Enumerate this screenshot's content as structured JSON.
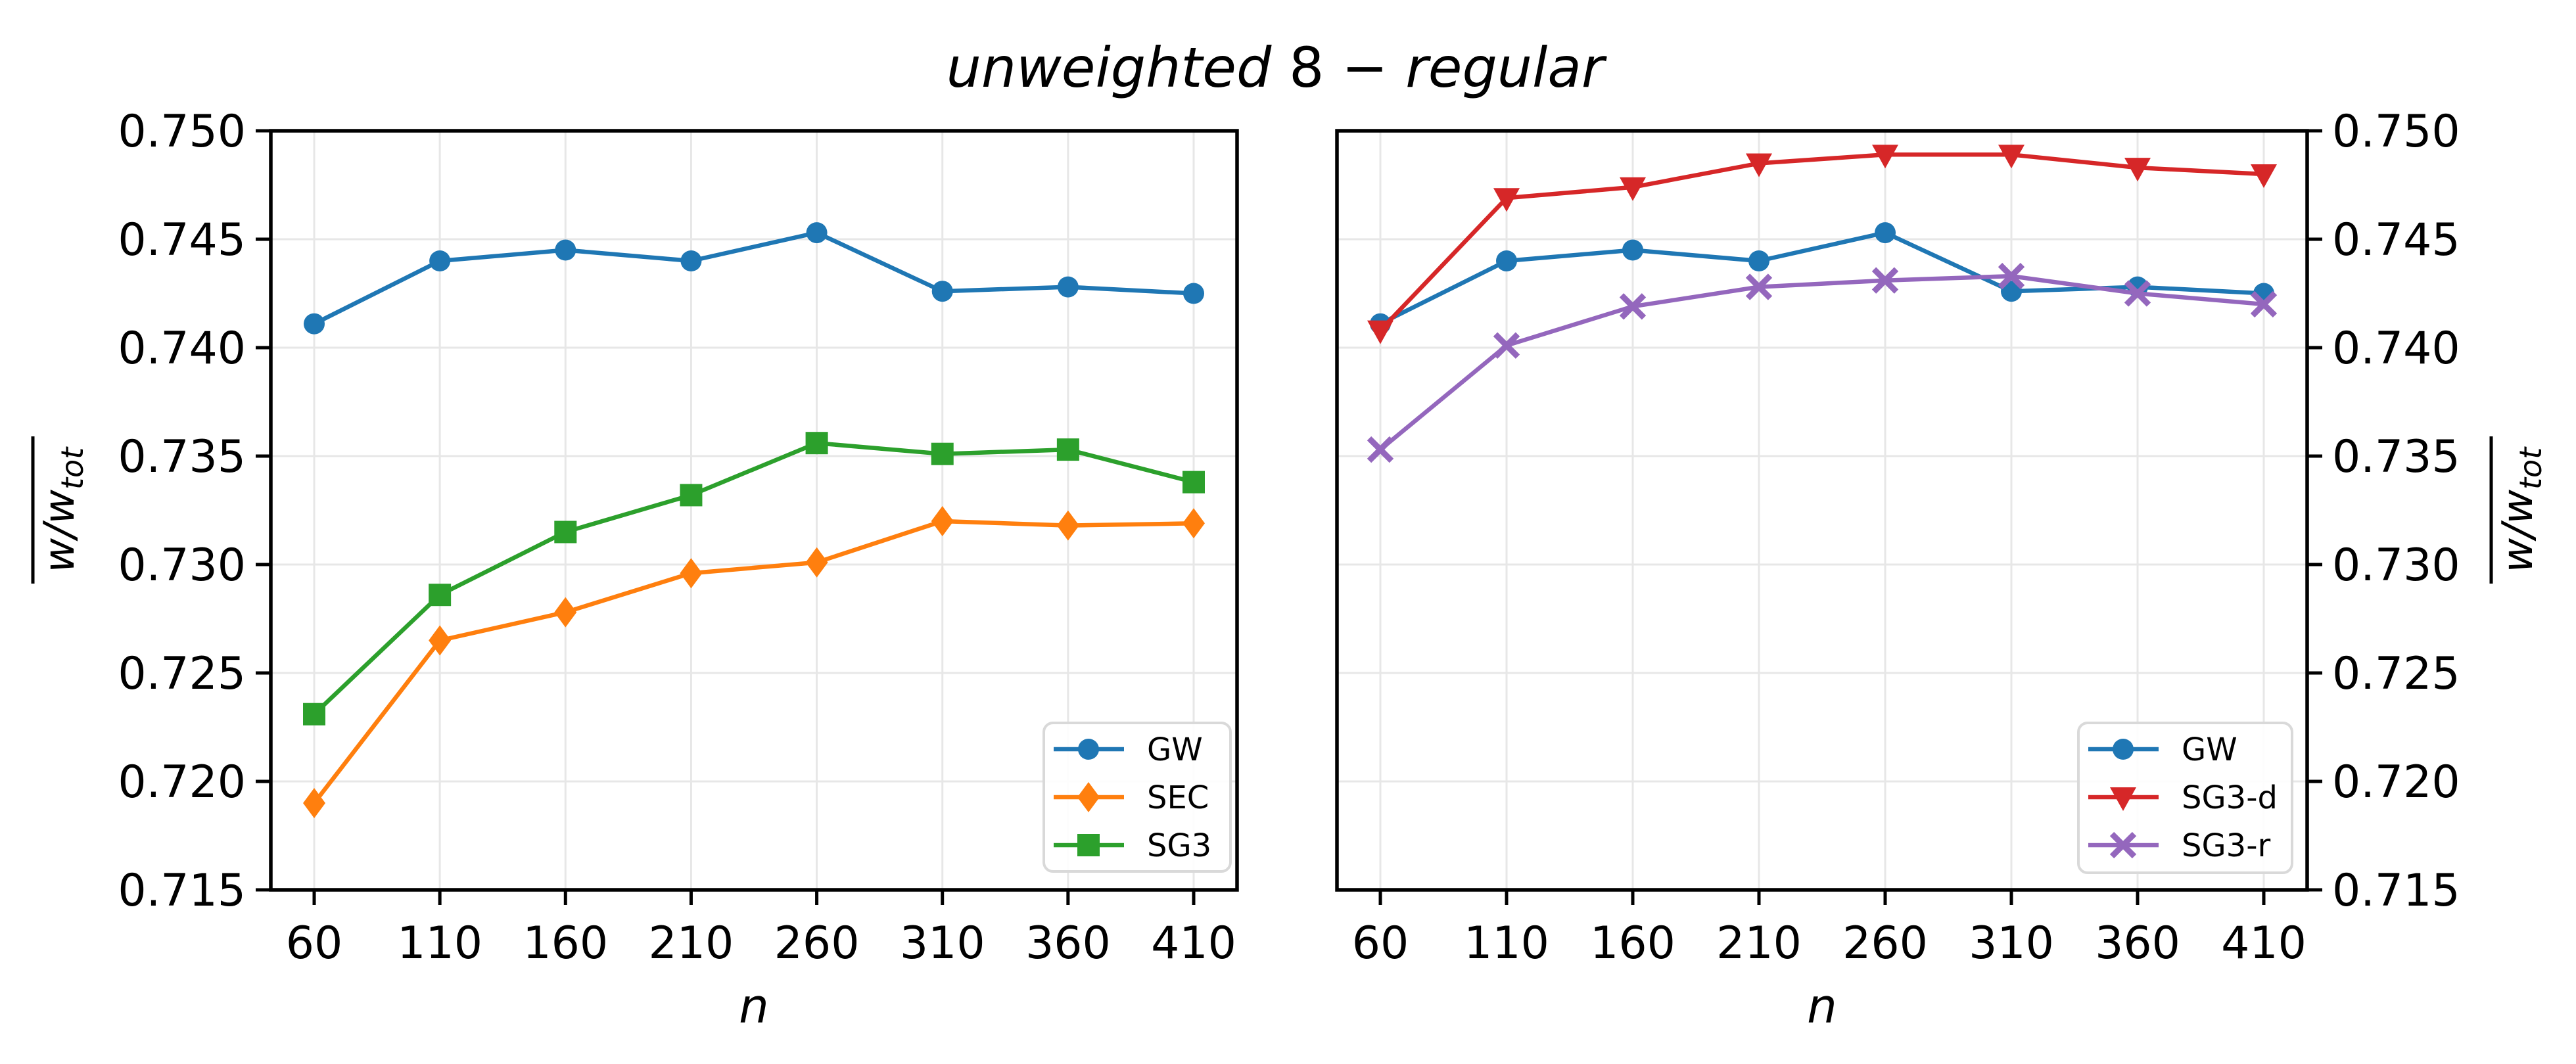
{
  "figure": {
    "title": "unweighted 8 − regular",
    "title_parts": [
      {
        "text": "unweighted",
        "italic": true
      },
      {
        "text": " 8 − ",
        "italic": false
      },
      {
        "text": "regular",
        "italic": true
      }
    ],
    "background": "#ffffff"
  },
  "chart_data": [
    {
      "type": "line",
      "panel": "left",
      "x": [
        60,
        110,
        160,
        210,
        260,
        310,
        360,
        410
      ],
      "xtick_labels": [
        "60",
        "110",
        "160",
        "210",
        "260",
        "310",
        "360",
        "410"
      ],
      "xlabel": "n",
      "ylabel": {
        "text": "w/w",
        "sub": "tot",
        "overline": true
      },
      "ylim": [
        0.715,
        0.75
      ],
      "yticks": [
        0.715,
        0.72,
        0.725,
        0.73,
        0.735,
        0.74,
        0.745,
        0.75
      ],
      "ytick_labels": [
        "0.715",
        "0.720",
        "0.725",
        "0.730",
        "0.735",
        "0.740",
        "0.745",
        "0.750"
      ],
      "y_axis_side": "left",
      "grid": true,
      "grid_color": "#e7e7e7",
      "legend_position": "lower right",
      "series": [
        {
          "name": "GW",
          "color": "#1f77b4",
          "marker": "circle",
          "values": [
            0.7411,
            0.744,
            0.7445,
            0.744,
            0.7453,
            0.7426,
            0.7428,
            0.7425
          ]
        },
        {
          "name": "SEC",
          "color": "#ff7f0e",
          "marker": "thin-diamond",
          "values": [
            0.719,
            0.7265,
            0.7278,
            0.7296,
            0.7301,
            0.732,
            0.7318,
            0.7319
          ]
        },
        {
          "name": "SG3",
          "color": "#2ca02c",
          "marker": "square",
          "values": [
            0.7231,
            0.7286,
            0.7315,
            0.7332,
            0.7356,
            0.7351,
            0.7353,
            0.7338
          ]
        }
      ]
    },
    {
      "type": "line",
      "panel": "right",
      "x": [
        60,
        110,
        160,
        210,
        260,
        310,
        360,
        410
      ],
      "xtick_labels": [
        "60",
        "110",
        "160",
        "210",
        "260",
        "310",
        "360",
        "410"
      ],
      "xlabel": "n",
      "ylabel": {
        "text": "w/w",
        "sub": "tot",
        "overline": true
      },
      "ylim": [
        0.715,
        0.75
      ],
      "yticks": [
        0.715,
        0.72,
        0.725,
        0.73,
        0.735,
        0.74,
        0.745,
        0.75
      ],
      "ytick_labels": [
        "0.715",
        "0.720",
        "0.725",
        "0.730",
        "0.735",
        "0.740",
        "0.745",
        "0.750"
      ],
      "y_axis_side": "right",
      "grid": true,
      "grid_color": "#e7e7e7",
      "legend_position": "lower right",
      "series": [
        {
          "name": "GW",
          "color": "#1f77b4",
          "marker": "circle",
          "values": [
            0.7411,
            0.744,
            0.7445,
            0.744,
            0.7453,
            0.7426,
            0.7428,
            0.7425
          ]
        },
        {
          "name": "SG3-d",
          "color": "#d62728",
          "marker": "triangle-down",
          "values": [
            0.7408,
            0.7469,
            0.7474,
            0.7485,
            0.7489,
            0.7489,
            0.7483,
            0.748
          ]
        },
        {
          "name": "SG3-r",
          "color": "#9467bd",
          "marker": "x",
          "values": [
            0.7353,
            0.7401,
            0.7419,
            0.7428,
            0.7431,
            0.7433,
            0.7425,
            0.742
          ]
        }
      ]
    }
  ]
}
